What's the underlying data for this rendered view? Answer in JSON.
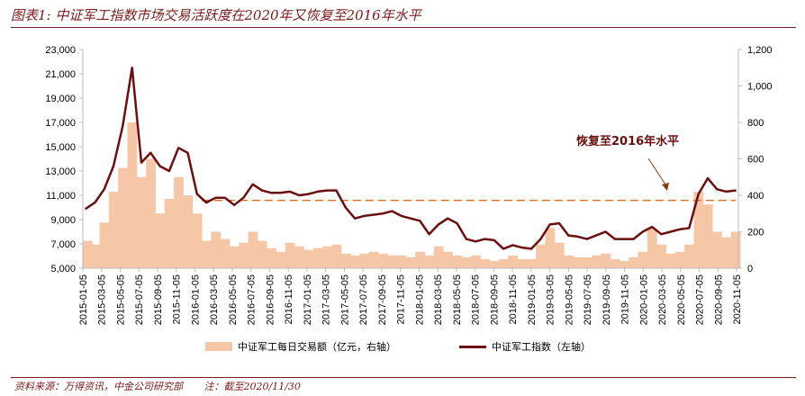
{
  "title": "图表1:  中证军工指数市场交易活跃度在2020年又恢复至2016年水平",
  "footnote": {
    "source": "资料来源：万得资讯，中金公司研究部",
    "note": "注：截至2020/11/30"
  },
  "colors": {
    "volume": "#f6c7a7",
    "index": "#6b0e0e",
    "reference": "#d9742f",
    "title": "#7a1a1a"
  },
  "chart_data": {
    "type": "line+area",
    "title": "",
    "annotation": "恢复至2016年水平",
    "legend_position": "bottom",
    "grid": false,
    "left_axis": {
      "min": 5000,
      "max": 23000,
      "ticks": [
        "5,000",
        "7,000",
        "9,000",
        "11,000",
        "13,000",
        "15,000",
        "17,000",
        "19,000",
        "21,000",
        "23,000"
      ]
    },
    "right_axis": {
      "min": 0,
      "max": 1200,
      "ticks": [
        "0",
        "200",
        "400",
        "600",
        "800",
        "1,000",
        "1,200"
      ]
    },
    "x_ticks": [
      "2015-01-05",
      "2015-03-05",
      "2015-05-05",
      "2015-07-05",
      "2015-09-05",
      "2015-11-05",
      "2016-01-05",
      "2016-03-05",
      "2016-05-05",
      "2016-07-05",
      "2016-09-05",
      "2016-11-05",
      "2017-01-05",
      "2017-03-05",
      "2017-05-05",
      "2017-07-05",
      "2017-09-05",
      "2017-11-05",
      "2018-01-05",
      "2018-03-05",
      "2018-05-05",
      "2018-07-05",
      "2018-09-05",
      "2018-11-05",
      "2019-01-05",
      "2019-03-05",
      "2019-05-05",
      "2019-07-05",
      "2019-09-05",
      "2019-11-05",
      "2020-01-05",
      "2020-03-05",
      "2020-05-05",
      "2020-07-05",
      "2020-09-05",
      "2020-11-05"
    ],
    "x": [
      "2015-01",
      "2015-02",
      "2015-03",
      "2015-04",
      "2015-05",
      "2015-06",
      "2015-07",
      "2015-08",
      "2015-09",
      "2015-10",
      "2015-11",
      "2015-12",
      "2016-01",
      "2016-02",
      "2016-03",
      "2016-04",
      "2016-05",
      "2016-06",
      "2016-07",
      "2016-08",
      "2016-09",
      "2016-10",
      "2016-11",
      "2016-12",
      "2017-01",
      "2017-02",
      "2017-03",
      "2017-04",
      "2017-05",
      "2017-06",
      "2017-07",
      "2017-08",
      "2017-09",
      "2017-10",
      "2017-11",
      "2017-12",
      "2018-01",
      "2018-02",
      "2018-03",
      "2018-04",
      "2018-05",
      "2018-06",
      "2018-07",
      "2018-08",
      "2018-09",
      "2018-10",
      "2018-11",
      "2018-12",
      "2019-01",
      "2019-02",
      "2019-03",
      "2019-04",
      "2019-05",
      "2019-06",
      "2019-07",
      "2019-08",
      "2019-09",
      "2019-10",
      "2019-11",
      "2019-12",
      "2020-01",
      "2020-02",
      "2020-03",
      "2020-04",
      "2020-05",
      "2020-06",
      "2020-07",
      "2020-08",
      "2020-09",
      "2020-10",
      "2020-11"
    ],
    "series": [
      {
        "name": "中证军工每日交易额（亿元，右轴）",
        "type": "area",
        "axis": "right",
        "values": [
          150,
          130,
          250,
          420,
          550,
          800,
          500,
          600,
          300,
          380,
          500,
          400,
          300,
          150,
          200,
          160,
          120,
          140,
          200,
          150,
          110,
          90,
          140,
          120,
          100,
          110,
          120,
          130,
          80,
          70,
          80,
          90,
          80,
          70,
          70,
          60,
          90,
          70,
          120,
          90,
          70,
          60,
          70,
          50,
          40,
          50,
          70,
          50,
          50,
          130,
          220,
          140,
          70,
          60,
          60,
          70,
          80,
          50,
          40,
          60,
          90,
          220,
          130,
          80,
          90,
          130,
          420,
          350,
          200,
          170,
          200
        ]
      },
      {
        "name": "中证军工指数（左轴）",
        "type": "line",
        "axis": "left",
        "values": [
          9900,
          10400,
          11500,
          13400,
          16700,
          21500,
          13700,
          14500,
          13400,
          13000,
          14900,
          14500,
          11100,
          10400,
          10800,
          10800,
          10200,
          10800,
          11900,
          11400,
          11200,
          11200,
          11300,
          11000,
          11100,
          11300,
          11400,
          11400,
          10000,
          9100,
          9300,
          9400,
          9500,
          9700,
          9300,
          9100,
          8900,
          7800,
          8600,
          9100,
          8700,
          7400,
          7200,
          7400,
          7300,
          6600,
          6900,
          6700,
          6600,
          7400,
          8600,
          8700,
          7700,
          7600,
          7400,
          7700,
          8000,
          7400,
          7400,
          7400,
          8000,
          8400,
          7800,
          8000,
          8200,
          8300,
          11100,
          12400,
          11500,
          11300,
          11400
        ]
      }
    ],
    "reference_line": {
      "axis": "left",
      "value": 10580,
      "from": "2016-01",
      "to": "2020-11",
      "style": "dashed"
    }
  }
}
